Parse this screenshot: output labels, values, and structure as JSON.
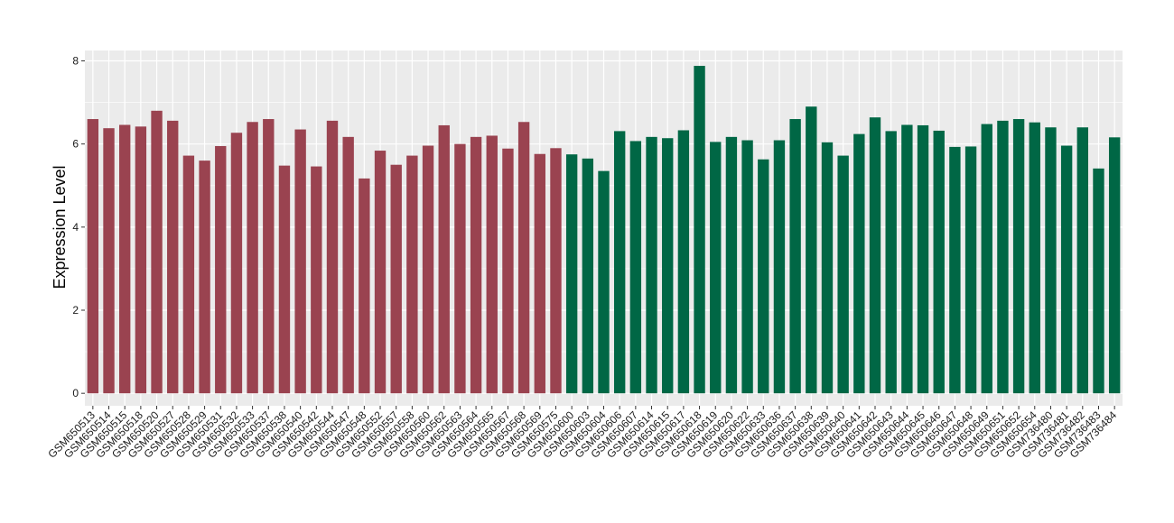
{
  "chart_data": {
    "type": "bar",
    "title": "",
    "xlabel": "",
    "ylabel": "Expression Level",
    "ylim": [
      -0.3,
      8.25
    ],
    "yticks": [
      0,
      2,
      4,
      6,
      8
    ],
    "grid": true,
    "legend": "none",
    "categories": [
      "GSM650513",
      "GSM650514",
      "GSM650515",
      "GSM650518",
      "GSM650520",
      "GSM650527",
      "GSM650528",
      "GSM650529",
      "GSM650531",
      "GSM650532",
      "GSM650533",
      "GSM650537",
      "GSM650538",
      "GSM650540",
      "GSM650542",
      "GSM650544",
      "GSM650547",
      "GSM650548",
      "GSM650552",
      "GSM650557",
      "GSM650558",
      "GSM650560",
      "GSM650562",
      "GSM650563",
      "GSM650564",
      "GSM650565",
      "GSM650567",
      "GSM650568",
      "GSM650569",
      "GSM650575",
      "GSM650600",
      "GSM650603",
      "GSM650604",
      "GSM650606",
      "GSM650607",
      "GSM650614",
      "GSM650615",
      "GSM650617",
      "GSM650618",
      "GSM650619",
      "GSM650620",
      "GSM650622",
      "GSM650633",
      "GSM650636",
      "GSM650637",
      "GSM650638",
      "GSM650639",
      "GSM650640",
      "GSM650641",
      "GSM650642",
      "GSM650643",
      "GSM650644",
      "GSM650645",
      "GSM650646",
      "GSM650647",
      "GSM650648",
      "GSM650649",
      "GSM650651",
      "GSM650652",
      "GSM650654",
      "GSM736480",
      "GSM736481",
      "GSM736482",
      "GSM736483",
      "GSM736484"
    ],
    "values": [
      6.6,
      6.38,
      6.46,
      6.42,
      6.8,
      6.56,
      5.72,
      5.6,
      5.95,
      6.27,
      6.53,
      6.6,
      5.48,
      6.35,
      5.46,
      6.56,
      6.17,
      5.17,
      5.84,
      5.5,
      5.72,
      5.96,
      6.45,
      6.0,
      6.17,
      6.2,
      5.89,
      6.53,
      5.76,
      5.9,
      5.75,
      5.65,
      5.35,
      6.31,
      6.07,
      6.17,
      6.14,
      6.33,
      7.88,
      6.05,
      6.17,
      6.09,
      5.63,
      6.09,
      6.6,
      6.9,
      6.04,
      5.72,
      6.24,
      6.64,
      6.31,
      6.46,
      6.45,
      6.32,
      5.93,
      5.94,
      6.48,
      6.56,
      6.6,
      6.52,
      6.4,
      5.96,
      6.4,
      5.41,
      6.16
    ],
    "colors": [
      "#9a4350",
      "#9a4350",
      "#9a4350",
      "#9a4350",
      "#9a4350",
      "#9a4350",
      "#9a4350",
      "#9a4350",
      "#9a4350",
      "#9a4350",
      "#9a4350",
      "#9a4350",
      "#9a4350",
      "#9a4350",
      "#9a4350",
      "#9a4350",
      "#9a4350",
      "#9a4350",
      "#9a4350",
      "#9a4350",
      "#9a4350",
      "#9a4350",
      "#9a4350",
      "#9a4350",
      "#9a4350",
      "#9a4350",
      "#9a4350",
      "#9a4350",
      "#9a4350",
      "#9a4350",
      "#006745",
      "#006745",
      "#006745",
      "#006745",
      "#006745",
      "#006745",
      "#006745",
      "#006745",
      "#006745",
      "#006745",
      "#006745",
      "#006745",
      "#006745",
      "#006745",
      "#006745",
      "#006745",
      "#006745",
      "#006745",
      "#006745",
      "#006745",
      "#006745",
      "#006745",
      "#006745",
      "#006745",
      "#006745",
      "#006745",
      "#006745",
      "#006745",
      "#006745",
      "#006745",
      "#006745",
      "#006745",
      "#006745",
      "#006745",
      "#006745"
    ],
    "panel_background": "#ebebeb",
    "grid_color": "#ffffff"
  }
}
